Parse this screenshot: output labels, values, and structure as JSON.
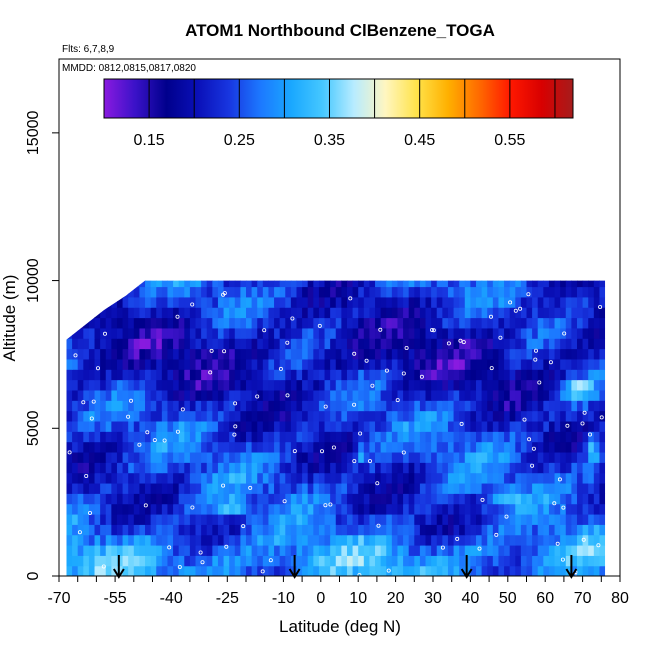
{
  "chart_data": {
    "type": "heatmap",
    "title": "ATOM1 Northbound ClBenzene_TOGA",
    "flights_label": "Flts: 6,7,8,9",
    "dates_label": "MMDD: 0812,0815,0817,0820",
    "xlabel": "Latitude (deg N)",
    "ylabel": "Altitude (m)",
    "xlim": [
      -70,
      80
    ],
    "ylim": [
      0,
      17500
    ],
    "x_tick_labels": [
      "-70",
      "-55",
      "-40",
      "-25",
      "-10",
      "0",
      "10",
      "20",
      "30",
      "40",
      "50",
      "60",
      "70",
      "80"
    ],
    "x_tick_values": [
      -70,
      -55,
      -40,
      -25,
      -10,
      0,
      10,
      20,
      30,
      40,
      50,
      60,
      70,
      80
    ],
    "x_minor_step": 5,
    "y_ticks": [
      0,
      5000,
      10000,
      15000
    ],
    "y_tick_labels": [
      "0",
      "5000",
      "10000",
      "15000"
    ],
    "colorbar": {
      "range": [
        0.1,
        0.62
      ],
      "labels": [
        "0.15",
        "0.25",
        "0.35",
        "0.45",
        "0.55"
      ],
      "label_values": [
        0.15,
        0.25,
        0.35,
        0.45,
        0.55
      ],
      "tick_values": [
        0.15,
        0.2,
        0.25,
        0.3,
        0.35,
        0.4,
        0.45,
        0.5,
        0.55,
        0.6
      ],
      "colors": [
        "#8a1ae0",
        "#3a12c8",
        "#00008c",
        "#0a10b8",
        "#1836e0",
        "#1c78ff",
        "#1aa8ff",
        "#46c8ff",
        "#b8ecff",
        "#fff6c0",
        "#ffe34a",
        "#ffb000",
        "#ff6a00",
        "#ff1800",
        "#d80000",
        "#a61c1c"
      ]
    },
    "sample_arrows_lat": [
      -54,
      -7,
      39,
      67
    ],
    "coverage": {
      "lat_min": -68,
      "lat_max": 76,
      "top_profile": [
        [
          -68,
          8000
        ],
        [
          -63,
          8500
        ],
        [
          -58,
          9000
        ],
        [
          -52,
          9500
        ],
        [
          -47,
          10000
        ],
        [
          -45,
          10000
        ],
        [
          76,
          10000
        ]
      ],
      "note_start_lat": -45
    }
  }
}
